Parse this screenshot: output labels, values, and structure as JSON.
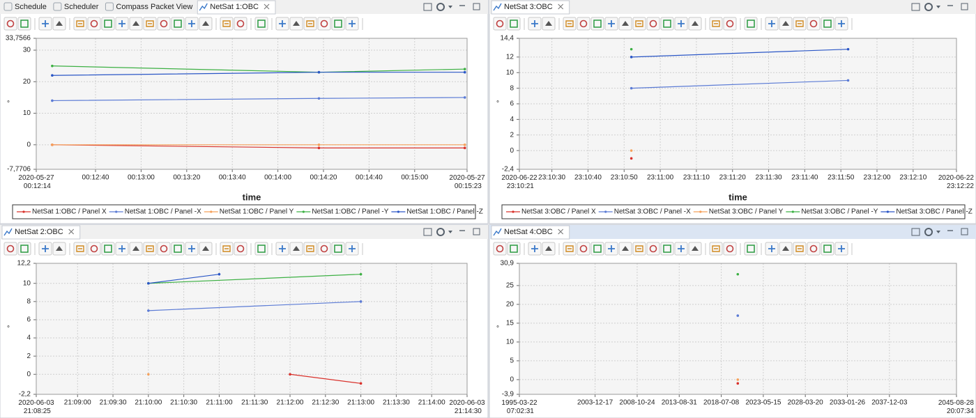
{
  "window_tabs": [
    "Schedule",
    "Scheduler",
    "Compass Packet View"
  ],
  "chart_data": [
    {
      "panel_tab": "NetSat 1:OBC",
      "type": "line",
      "xlabel": "time",
      "ylabel": "°",
      "grid": true,
      "legend": "bottom",
      "xlim": [
        "2020-05-27 00:12:14",
        "2020-05-27 00:15:23"
      ],
      "xticks": [
        "2020-05-27 00:12:14",
        {
          "value": "2020-05-27 00:12:40",
          "label": "00:12:40"
        },
        {
          "value": "2020-05-27 00:13:00",
          "label": "00:13:00"
        },
        {
          "value": "2020-05-27 00:13:20",
          "label": "00:13:20"
        },
        {
          "value": "2020-05-27 00:13:40",
          "label": "00:13:40"
        },
        {
          "value": "2020-05-27 00:14:00",
          "label": "00:14:00"
        },
        {
          "value": "2020-05-27 00:14:20",
          "label": "00:14:20"
        },
        {
          "value": "2020-05-27 00:14:40",
          "label": "00:14:40"
        },
        {
          "value": "2020-05-27 00:15:00",
          "label": "00:15:00"
        },
        "2020-05-27 00:15:23"
      ],
      "ylim": [
        -7.7706,
        33.7566
      ],
      "yticks": [
        {
          "value": -7.7706,
          "label": "-7,7706"
        },
        0,
        10,
        20,
        30,
        {
          "value": 33.7566,
          "label": "33,7566"
        }
      ],
      "series": [
        {
          "name": "NetSat 1:OBC / Panel X",
          "color": "#d9312b",
          "x": [
            "2020-05-27 00:12:21",
            "2020-05-27 00:14:18",
            "2020-05-27 00:15:22"
          ],
          "values": [
            0,
            -1,
            -1
          ]
        },
        {
          "name": "NetSat 1:OBC / Panel -X",
          "color": "#5b7bd5",
          "x": [
            "2020-05-27 00:12:21",
            "2020-05-27 00:14:18",
            "2020-05-27 00:15:22"
          ],
          "values": [
            14,
            14.7,
            15
          ]
        },
        {
          "name": "NetSat 1:OBC / Panel Y",
          "color": "#f5a05a",
          "x": [
            "2020-05-27 00:12:21",
            "2020-05-27 00:14:18",
            "2020-05-27 00:15:22"
          ],
          "values": [
            0,
            0,
            0
          ]
        },
        {
          "name": "NetSat 1:OBC / Panel -Y",
          "color": "#3cb043",
          "x": [
            "2020-05-27 00:12:21",
            "2020-05-27 00:14:18",
            "2020-05-27 00:15:22"
          ],
          "values": [
            25,
            23,
            24
          ]
        },
        {
          "name": "NetSat 1:OBC / Panel -Z",
          "color": "#2a56c6",
          "x": [
            "2020-05-27 00:12:21",
            "2020-05-27 00:14:18",
            "2020-05-27 00:15:22"
          ],
          "values": [
            22,
            23,
            23
          ]
        }
      ]
    },
    {
      "panel_tab": "NetSat 3:OBC",
      "type": "line",
      "xlabel": "time",
      "ylabel": "°",
      "grid": true,
      "legend": "bottom",
      "xlim": [
        "2020-06-22 23:10:21",
        "2020-06-22 23:12:22"
      ],
      "xticks": [
        "2020-06-22 23:10:21",
        {
          "value": "2020-06-22 23:10:30",
          "label": "23:10:30"
        },
        {
          "value": "2020-06-22 23:10:40",
          "label": "23:10:40"
        },
        {
          "value": "2020-06-22 23:10:50",
          "label": "23:10:50"
        },
        {
          "value": "2020-06-22 23:11:00",
          "label": "23:11:00"
        },
        {
          "value": "2020-06-22 23:11:10",
          "label": "23:11:10"
        },
        {
          "value": "2020-06-22 23:11:20",
          "label": "23:11:20"
        },
        {
          "value": "2020-06-22 23:11:30",
          "label": "23:11:30"
        },
        {
          "value": "2020-06-22 23:11:40",
          "label": "23:11:40"
        },
        {
          "value": "2020-06-22 23:11:50",
          "label": "23:11:50"
        },
        {
          "value": "2020-06-22 23:12:00",
          "label": "23:12:00"
        },
        {
          "value": "2020-06-22 23:12:10",
          "label": "23:12:10"
        },
        "2020-06-22 23:12:22"
      ],
      "ylim": [
        -2.4,
        14.4
      ],
      "yticks": [
        {
          "value": -2.4,
          "label": "-2,4"
        },
        0,
        2,
        4,
        6,
        8,
        10,
        12,
        {
          "value": 14.4,
          "label": "14,4"
        }
      ],
      "series": [
        {
          "name": "NetSat 3:OBC / Panel X",
          "color": "#d9312b",
          "x": [
            "2020-06-22 23:10:52"
          ],
          "values": [
            -1
          ]
        },
        {
          "name": "NetSat 3:OBC / Panel -X",
          "color": "#5b7bd5",
          "x": [
            "2020-06-22 23:10:52",
            "2020-06-22 23:11:52"
          ],
          "values": [
            8,
            9
          ]
        },
        {
          "name": "NetSat 3:OBC / Panel Y",
          "color": "#f5a05a",
          "x": [
            "2020-06-22 23:10:52"
          ],
          "values": [
            0
          ]
        },
        {
          "name": "NetSat 3:OBC / Panel -Y",
          "color": "#3cb043",
          "x": [
            "2020-06-22 23:10:52"
          ],
          "values": [
            13
          ]
        },
        {
          "name": "NetSat 3:OBC / Panel -Z",
          "color": "#2a56c6",
          "x": [
            "2020-06-22 23:10:52",
            "2020-06-22 23:11:52"
          ],
          "values": [
            12,
            13
          ]
        }
      ]
    },
    {
      "panel_tab": "NetSat 2:OBC",
      "type": "line",
      "ylabel": "°",
      "grid": true,
      "xlim": [
        "2020-06-03 21:08:25",
        "2020-06-03 21:14:30"
      ],
      "xticks": [
        "2020-06-03 21:08:25",
        {
          "value": "2020-06-03 21:09:00",
          "label": "21:09:00"
        },
        {
          "value": "2020-06-03 21:09:30",
          "label": "21:09:30"
        },
        {
          "value": "2020-06-03 21:10:00",
          "label": "21:10:00"
        },
        {
          "value": "2020-06-03 21:10:30",
          "label": "21:10:30"
        },
        {
          "value": "2020-06-03 21:11:00",
          "label": "21:11:00"
        },
        {
          "value": "2020-06-03 21:11:30",
          "label": "21:11:30"
        },
        {
          "value": "2020-06-03 21:12:00",
          "label": "21:12:00"
        },
        {
          "value": "2020-06-03 21:12:30",
          "label": "21:12:30"
        },
        {
          "value": "2020-06-03 21:13:00",
          "label": "21:13:00"
        },
        {
          "value": "2020-06-03 21:13:30",
          "label": "21:13:30"
        },
        {
          "value": "2020-06-03 21:14:00",
          "label": "21:14:00"
        },
        "2020-06-03 21:14:30"
      ],
      "ylim": [
        -2.2,
        12.2
      ],
      "yticks": [
        {
          "value": -2.2,
          "label": "-2,2"
        },
        0,
        2,
        4,
        6,
        8,
        10,
        {
          "value": 12.2,
          "label": "12,2"
        }
      ],
      "series": [
        {
          "color": "#d9312b",
          "x": [
            "2020-06-03 21:12:00",
            "2020-06-03 21:13:00"
          ],
          "values": [
            0,
            -1
          ]
        },
        {
          "color": "#5b7bd5",
          "x": [
            "2020-06-03 21:10:00",
            "2020-06-03 21:13:00"
          ],
          "values": [
            7,
            8
          ]
        },
        {
          "color": "#f5a05a",
          "x": [
            "2020-06-03 21:10:00"
          ],
          "values": [
            0
          ]
        },
        {
          "color": "#3cb043",
          "x": [
            "2020-06-03 21:10:00",
            "2020-06-03 21:13:00"
          ],
          "values": [
            10,
            11
          ]
        },
        {
          "color": "#2a56c6",
          "x": [
            "2020-06-03 21:10:00",
            "2020-06-03 21:11:00"
          ],
          "values": [
            10,
            11
          ]
        }
      ]
    },
    {
      "panel_tab": "NetSat 4:OBC",
      "type": "scatter",
      "ylabel": "°",
      "grid": true,
      "xlim": [
        "1995-03-22 07:02:31",
        "2045-08-28 20:07:34"
      ],
      "xticks": [
        "1995-03-22 07:02:31",
        "2003-12-17",
        "2008-10-24",
        "2013-08-31",
        "2018-07-08",
        "2023-05-15",
        "2028-03-20",
        "2033-01-26",
        "2037-12-03",
        "2045-08-28 20:07:34"
      ],
      "ylim": [
        -3.9,
        30.9
      ],
      "yticks": [
        {
          "value": -3.9,
          "label": "-3,9"
        },
        0,
        5,
        10,
        15,
        20,
        25,
        {
          "value": 30.9,
          "label": "30,9"
        }
      ],
      "series": [
        {
          "color": "#d9312b",
          "x": [
            "2020-06-03"
          ],
          "values": [
            -1
          ]
        },
        {
          "color": "#5b7bd5",
          "x": [
            "2020-06-03"
          ],
          "values": [
            17
          ]
        },
        {
          "color": "#f5a05a",
          "x": [
            "2020-06-03"
          ],
          "values": [
            0
          ]
        },
        {
          "color": "#3cb043",
          "x": [
            "2020-06-03"
          ],
          "values": [
            28
          ]
        }
      ]
    }
  ]
}
